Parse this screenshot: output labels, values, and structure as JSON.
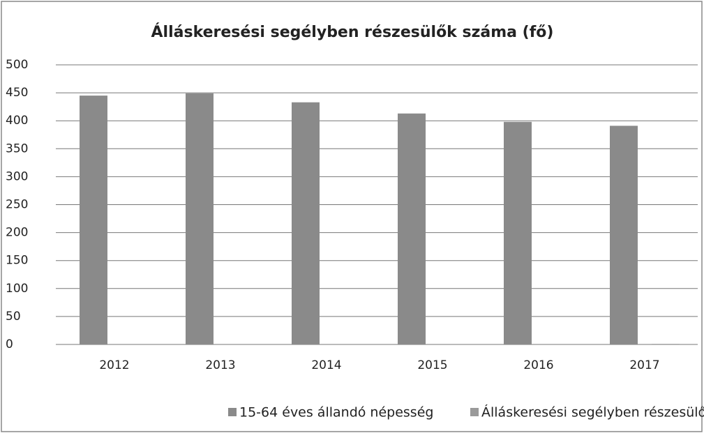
{
  "chart_data": {
    "type": "bar",
    "title": "Álláskeresési segélyben részesülők száma (fő)",
    "categories": [
      "2012",
      "2013",
      "2014",
      "2015",
      "2016",
      "2017"
    ],
    "series": [
      {
        "name": "15-64 éves állandó népesség",
        "color": "#8a8a8a",
        "values": [
          445,
          449,
          433,
          413,
          398,
          391
        ]
      },
      {
        "name": "Álláskeresési segélyben részesülők",
        "color": "#9a9a9a",
        "values": [
          0,
          0,
          0,
          0,
          0,
          1
        ]
      }
    ],
    "ylim": [
      0,
      500
    ],
    "yticks": [
      0,
      50,
      100,
      150,
      200,
      250,
      300,
      350,
      400,
      450,
      500
    ],
    "grid": true,
    "legend": "bottom"
  }
}
